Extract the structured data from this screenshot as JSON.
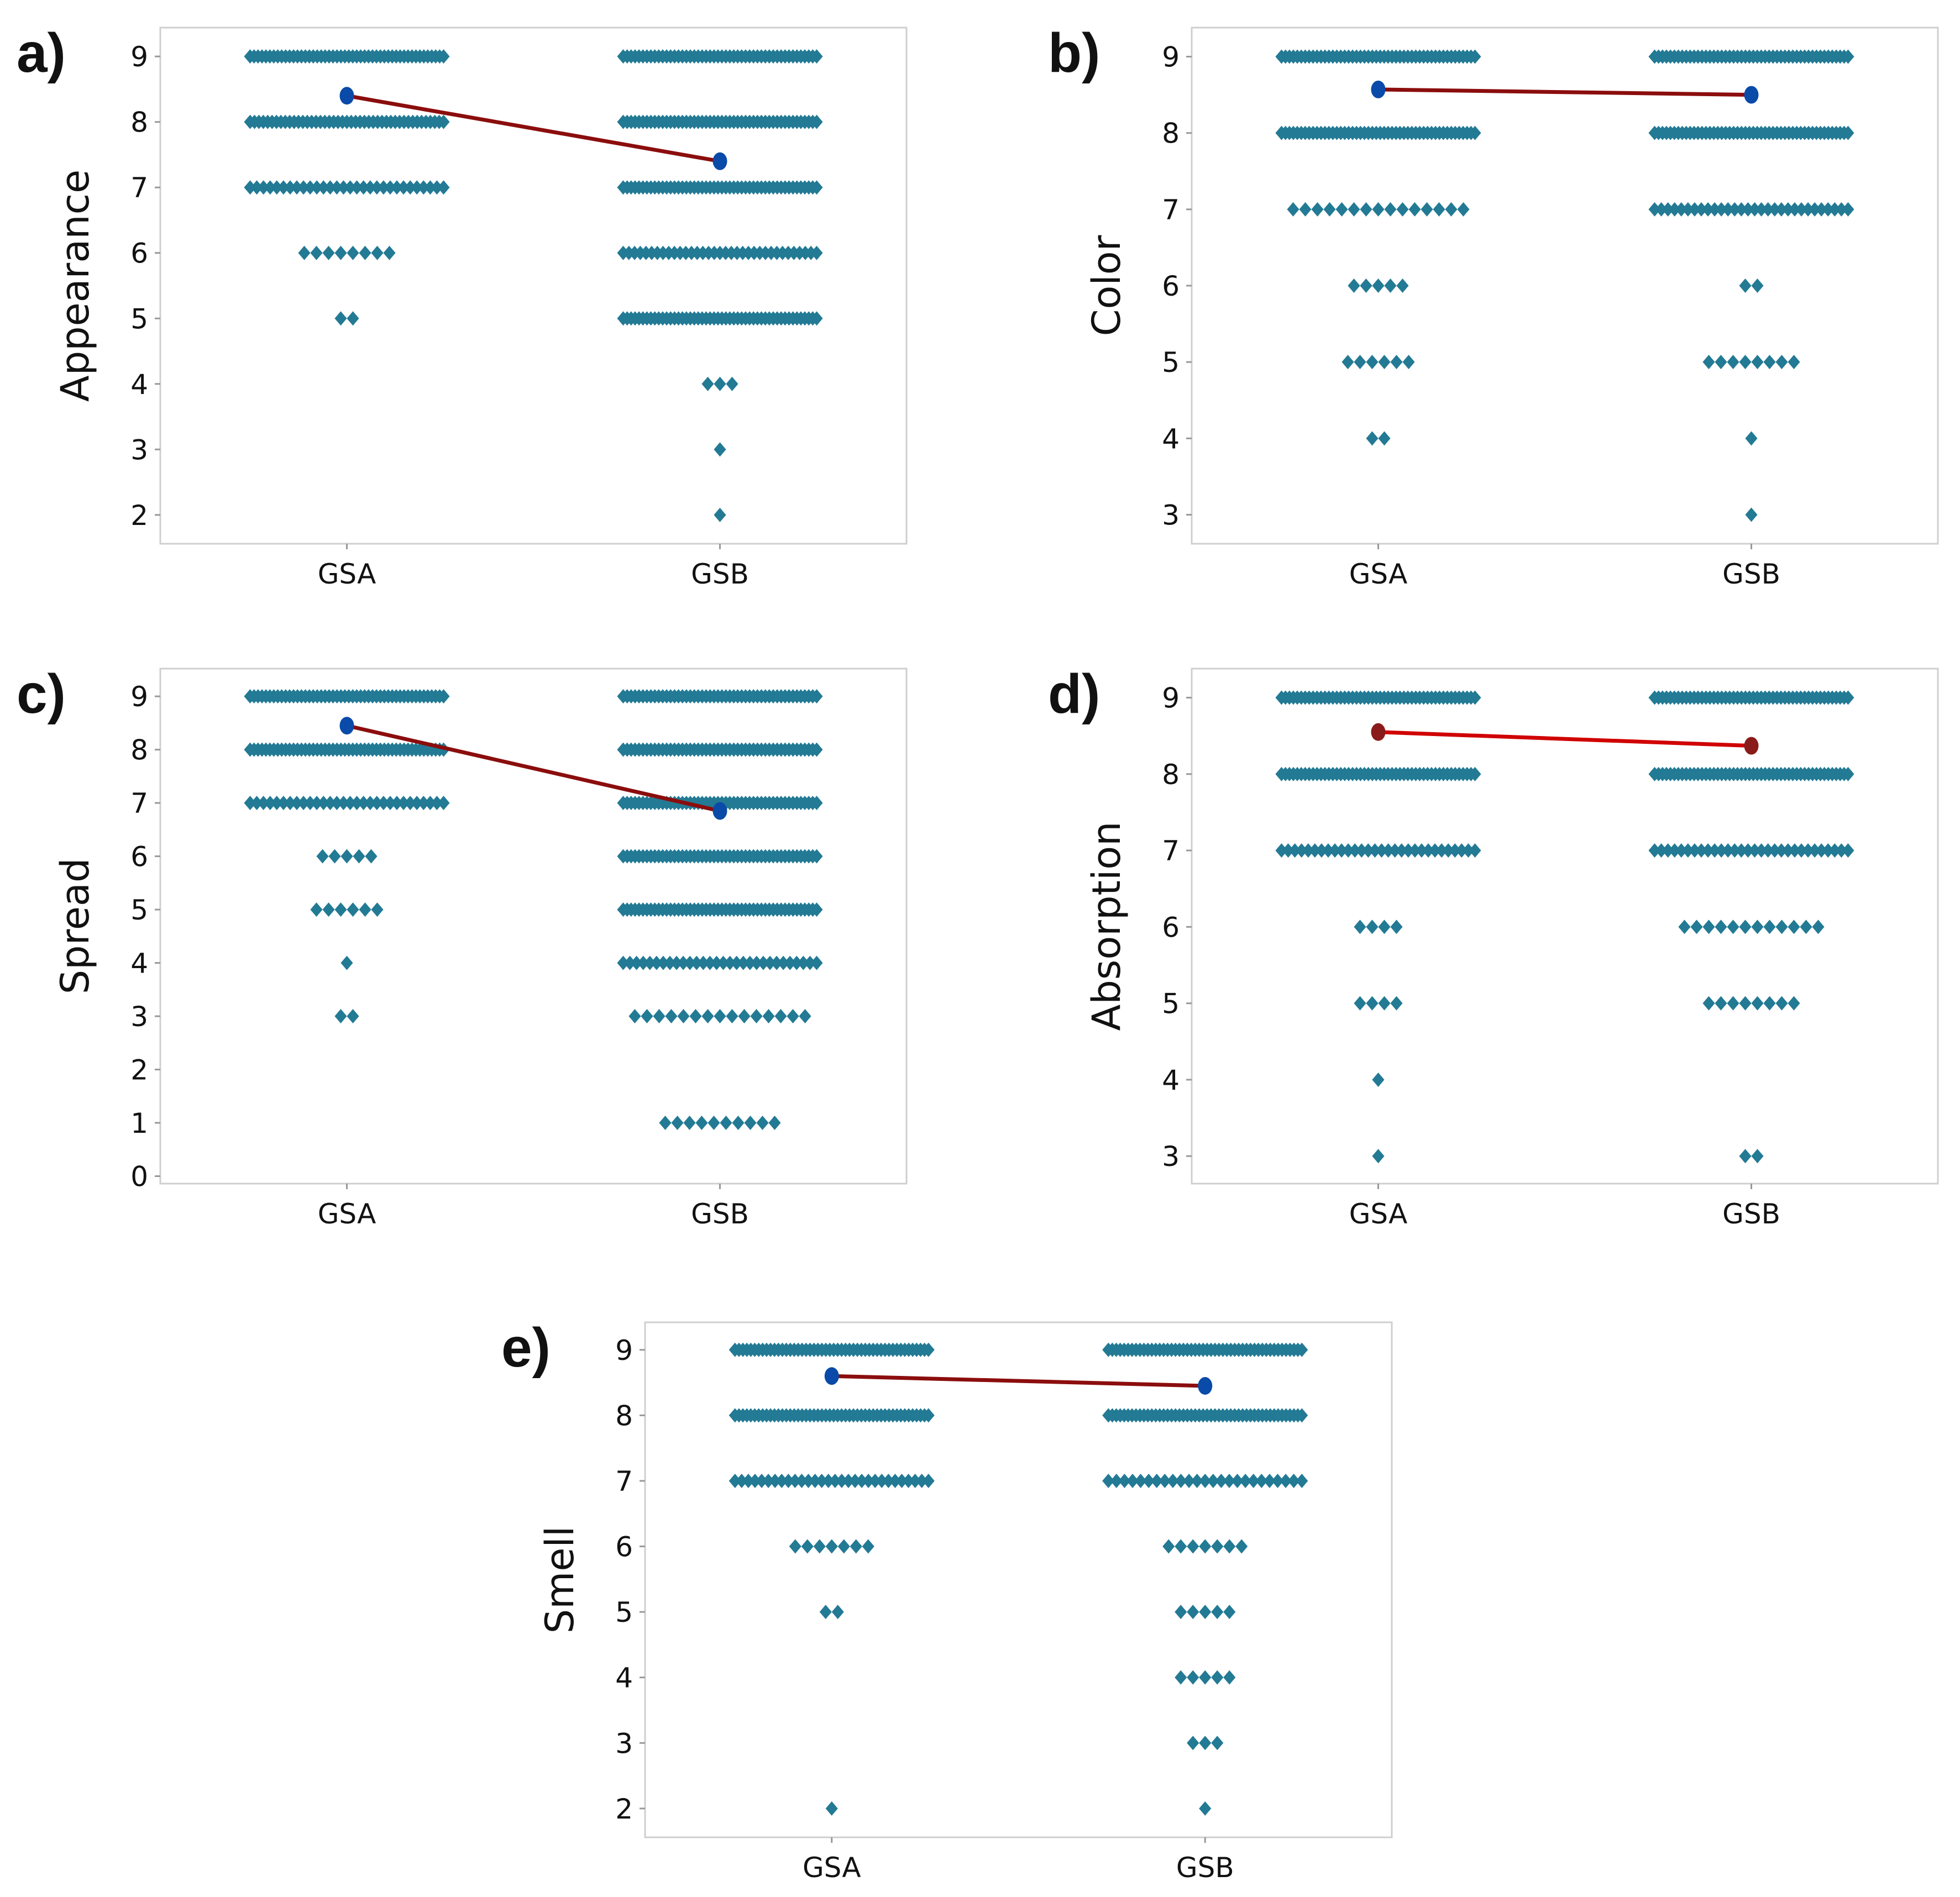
{
  "colors": {
    "dots": "#237a94",
    "mean_marker": "#0a4aa8",
    "mean_line": "#8b0d0d",
    "frame": "#cfcfcf"
  },
  "chart_data": [
    {
      "type": "scatter",
      "panel": "a)",
      "ylabel": "Appearance",
      "categories": [
        "GSA",
        "GSB"
      ],
      "yticks": [
        2,
        3,
        4,
        5,
        6,
        7,
        8,
        9
      ],
      "ylim": [
        1.56,
        9.44
      ],
      "counts": [
        {
          "9": 50,
          "8": 45,
          "7": 30,
          "6": 8,
          "5": 2
        },
        {
          "9": 50,
          "8": 50,
          "7": 50,
          "6": 35,
          "5": 50,
          "4": 3,
          "3": 1,
          "2": 1
        }
      ],
      "means": [
        8.4,
        7.4
      ],
      "mean_color_key": "mean_marker",
      "line_color_key": "mean_line"
    },
    {
      "type": "scatter",
      "panel": "b)",
      "ylabel": "Color",
      "categories": [
        "GSA",
        "GSB"
      ],
      "yticks": [
        3,
        4,
        5,
        6,
        7,
        8,
        9
      ],
      "ylim": [
        2.62,
        9.38
      ],
      "counts": [
        {
          "9": 50,
          "8": 50,
          "7": 15,
          "6": 5,
          "5": 6,
          "4": 2
        },
        {
          "9": 50,
          "8": 50,
          "7": 30,
          "6": 2,
          "5": 8,
          "4": 1,
          "3": 1
        }
      ],
      "means": [
        8.57,
        8.5
      ],
      "mean_color_key": "mean_marker",
      "line_color_key": "mean_line"
    },
    {
      "type": "scatter",
      "panel": "c)",
      "ylabel": "Spread",
      "categories": [
        "GSA",
        "GSB"
      ],
      "yticks": [
        0,
        1,
        2,
        3,
        4,
        5,
        6,
        7,
        8,
        9
      ],
      "ylim": [
        -0.14,
        9.52
      ],
      "counts": [
        {
          "9": 50,
          "8": 50,
          "7": 30,
          "6": 5,
          "5": 6,
          "4": 1,
          "3": 2
        },
        {
          "9": 50,
          "8": 50,
          "7": 50,
          "6": 50,
          "5": 50,
          "4": 30,
          "3": 15,
          "1": 10
        }
      ],
      "means": [
        8.45,
        6.85
      ],
      "mean_color_key": "mean_marker",
      "line_color_key": "mean_line"
    },
    {
      "type": "scatter",
      "panel": "d)",
      "ylabel": "Absorption",
      "categories": [
        "GSA",
        "GSB"
      ],
      "yticks": [
        3,
        4,
        5,
        6,
        7,
        8,
        9
      ],
      "ylim": [
        2.64,
        9.38
      ],
      "counts": [
        {
          "9": 50,
          "8": 50,
          "7": 30,
          "6": 4,
          "5": 4,
          "4": 1,
          "3": 1
        },
        {
          "9": 50,
          "8": 50,
          "7": 30,
          "6": 12,
          "5": 8,
          "3": 2
        }
      ],
      "means": [
        8.55,
        8.37
      ],
      "mean_color": "#8b1a1a",
      "line_color": "#d00000"
    },
    {
      "type": "scatter",
      "panel": "e)",
      "ylabel": "Smell",
      "categories": [
        "GSA",
        "GSB"
      ],
      "yticks": [
        2,
        3,
        4,
        5,
        6,
        7,
        8,
        9
      ],
      "ylim": [
        1.56,
        9.42
      ],
      "counts": [
        {
          "9": 50,
          "8": 50,
          "7": 30,
          "6": 7,
          "5": 2,
          "2": 1
        },
        {
          "9": 50,
          "8": 50,
          "7": 25,
          "6": 7,
          "5": 5,
          "4": 5,
          "3": 3,
          "2": 1
        }
      ],
      "means": [
        8.6,
        8.45
      ],
      "mean_color_key": "mean_marker",
      "line_color_key": "mean_line"
    }
  ]
}
